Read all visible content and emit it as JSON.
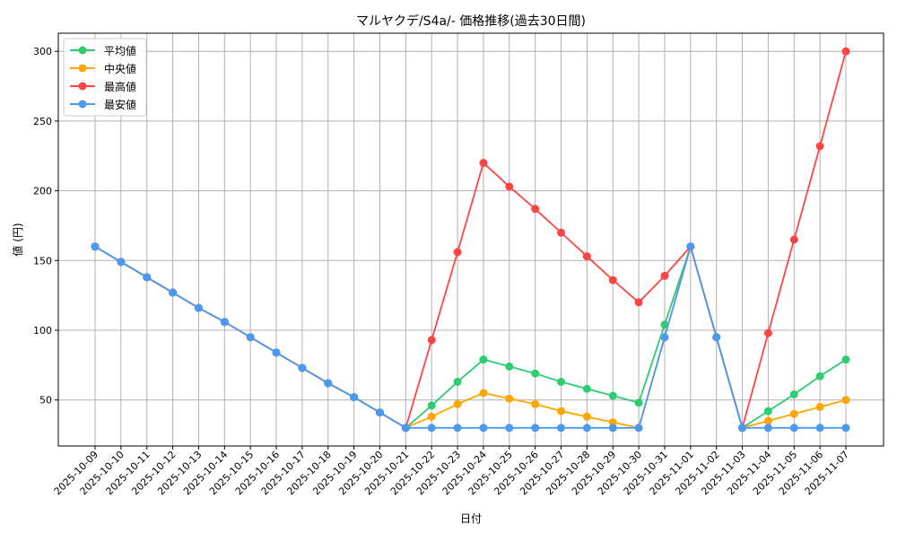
{
  "chart_data": {
    "type": "line",
    "title": "マルヤクデ/S4a/- 価格推移(過去30日間)",
    "xlabel": "日付",
    "ylabel": "値 (円)",
    "ylim": [
      17,
      313
    ],
    "yticks": [
      50,
      100,
      150,
      200,
      250,
      300
    ],
    "grid": true,
    "legend_position": "top-left",
    "categories": [
      "2025-10-09",
      "2025-10-10",
      "2025-10-11",
      "2025-10-12",
      "2025-10-13",
      "2025-10-14",
      "2025-10-15",
      "2025-10-16",
      "2025-10-17",
      "2025-10-18",
      "2025-10-19",
      "2025-10-20",
      "2025-10-21",
      "2025-10-22",
      "2025-10-23",
      "2025-10-24",
      "2025-10-25",
      "2025-10-26",
      "2025-10-27",
      "2025-10-28",
      "2025-10-29",
      "2025-10-30",
      "2025-10-31",
      "2025-11-01",
      "2025-11-02",
      "2025-11-03",
      "2025-11-04",
      "2025-11-05",
      "2025-11-06",
      "2025-11-07"
    ],
    "series": [
      {
        "name": "平均値",
        "color": "#2ecc71",
        "values": [
          160,
          149,
          138,
          127,
          116,
          106,
          95,
          84,
          73,
          62,
          52,
          41,
          30,
          46,
          63,
          79,
          74,
          69,
          63,
          58,
          53,
          48,
          104,
          160,
          95,
          30,
          42,
          54,
          67,
          79
        ]
      },
      {
        "name": "中央値",
        "color": "#ffa500",
        "values": [
          160,
          149,
          138,
          127,
          116,
          106,
          95,
          84,
          73,
          62,
          52,
          41,
          30,
          38,
          47,
          55,
          51,
          47,
          42,
          38,
          34,
          30,
          95,
          160,
          95,
          30,
          35,
          40,
          45,
          50
        ]
      },
      {
        "name": "最高値",
        "color": "#ff4444",
        "values": [
          160,
          149,
          138,
          127,
          116,
          106,
          95,
          84,
          73,
          62,
          52,
          41,
          30,
          93,
          156,
          220,
          203,
          187,
          170,
          153,
          136,
          120,
          139,
          160,
          95,
          30,
          98,
          165,
          232,
          300
        ]
      },
      {
        "name": "最安値",
        "color": "#4a9af5",
        "values": [
          160,
          149,
          138,
          127,
          116,
          106,
          95,
          84,
          73,
          62,
          52,
          41,
          30,
          30,
          30,
          30,
          30,
          30,
          30,
          30,
          30,
          30,
          95,
          160,
          95,
          30,
          30,
          30,
          30,
          30
        ]
      }
    ]
  }
}
